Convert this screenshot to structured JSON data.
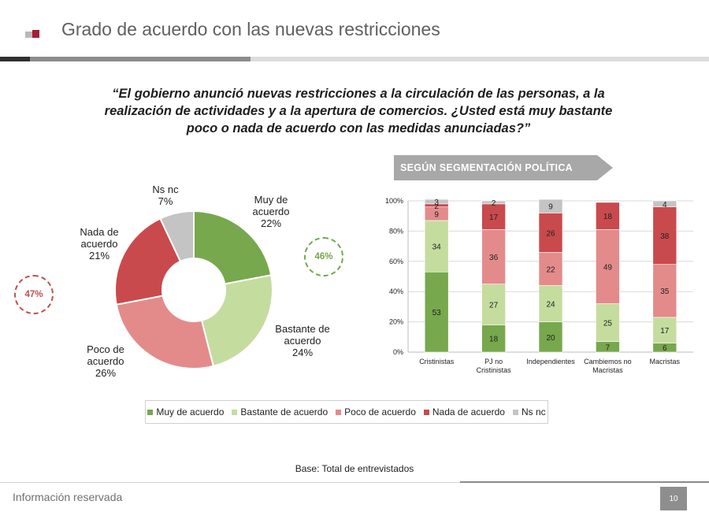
{
  "header": {
    "title": "Grado de acuerdo con las nuevas restricciones",
    "accent": "#a51d36"
  },
  "question": {
    "line1": "“El gobierno anunció nuevas restricciones a la circulación de las personas, a la",
    "line2": "realización de actividades y a la apertura de comercios. ¿Usted está muy bastante",
    "line3": "poco o nada de acuerdo con las medidas anunciadas?”"
  },
  "segment_label": "SEGÚN SEGMENTACIÓN POLÍTICA",
  "badges": {
    "agree_total": "46%",
    "disagree_total": "47%"
  },
  "colors": {
    "muy": "#77a84d",
    "bastante": "#c5dc9f",
    "poco": "#e38b8b",
    "nada": "#c94a4c",
    "nsnc": "#c4c4c4"
  },
  "chart_data": [
    {
      "type": "pie",
      "donut": true,
      "slices": [
        {
          "key": "muy",
          "label1": "Muy de",
          "label2": "acuerdo",
          "value": 22,
          "value_label": "22%"
        },
        {
          "key": "bastante",
          "label1": "Bastante de",
          "label2": "acuerdo",
          "value": 24,
          "value_label": "24%"
        },
        {
          "key": "poco",
          "label1": "Poco de",
          "label2": "acuerdo",
          "value": 26,
          "value_label": "26%"
        },
        {
          "key": "nada",
          "label1": "Nada de",
          "label2": "acuerdo",
          "value": 21,
          "value_label": "21%"
        },
        {
          "key": "nsnc",
          "label1": "Ns nc",
          "label2": "",
          "value": 7,
          "value_label": "7%"
        }
      ]
    },
    {
      "type": "bar",
      "stacked": true,
      "percent": true,
      "yticks": [
        "0%",
        "20%",
        "40%",
        "60%",
        "80%",
        "100%"
      ],
      "ylim": [
        0,
        100
      ],
      "categories": [
        [
          "Cristinistas"
        ],
        [
          "PJ no",
          "Cristinistas"
        ],
        [
          "Independientes"
        ],
        [
          "Cambiemos no",
          "Macristas"
        ],
        [
          "Macristas"
        ]
      ],
      "series": [
        {
          "key": "muy",
          "name": "Muy de acuerdo",
          "values": [
            53,
            18,
            20,
            7,
            6
          ]
        },
        {
          "key": "bastante",
          "name": "Bastante de acuerdo",
          "values": [
            34,
            27,
            24,
            25,
            17
          ]
        },
        {
          "key": "poco",
          "name": "Poco de acuerdo",
          "values": [
            9,
            36,
            22,
            49,
            35
          ]
        },
        {
          "key": "nada",
          "name": "Nada de acuerdo",
          "values": [
            2,
            17,
            26,
            18,
            38
          ]
        },
        {
          "key": "nsnc",
          "name": "Ns nc",
          "values": [
            3,
            2,
            9,
            0,
            4
          ]
        }
      ]
    }
  ],
  "base_note": "Base: Total de entrevistados",
  "footer": {
    "text": "Información reservada",
    "page": "10"
  }
}
